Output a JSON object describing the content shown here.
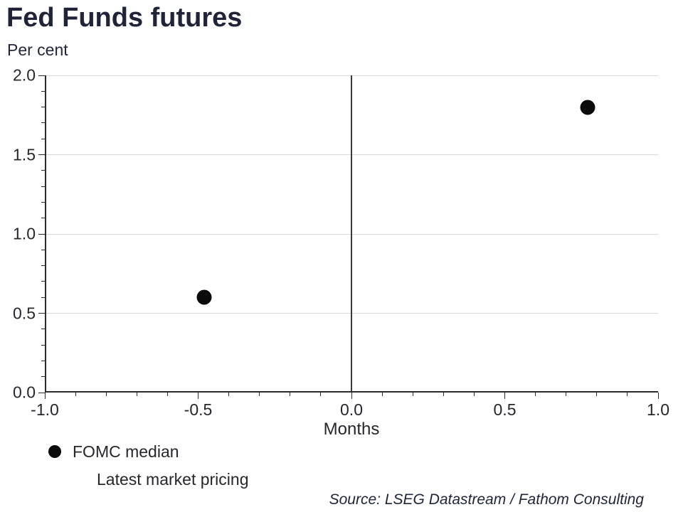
{
  "title": "Fed Funds futures",
  "y_axis_caption": "Per cent",
  "source": "Source: LSEG Datastream / Fathom Consulting",
  "legend": {
    "position": "bottom-left",
    "items": [
      {
        "label": "FOMC median",
        "marker": "filled-circle"
      },
      {
        "label": "Latest market pricing",
        "marker": "none"
      }
    ]
  },
  "chart_data": {
    "type": "scatter",
    "title": "Fed Funds futures",
    "ylabel": "Per cent",
    "xlabel": "Months",
    "xlim": [
      -1.0,
      1.0
    ],
    "ylim": [
      0.0,
      2.0
    ],
    "x_tick_values": [
      -1.0,
      -0.5,
      0.0,
      0.5,
      1.0
    ],
    "x_tick_labels": [
      "-1.0",
      "-0.5",
      "0.0",
      "0.5",
      "1.0"
    ],
    "y_tick_values": [
      0.0,
      0.5,
      1.0,
      1.5,
      2.0
    ],
    "y_tick_labels": [
      "0.0",
      "0.5",
      "1.0",
      "1.5",
      "2.0"
    ],
    "minor_tick_step": 0.1,
    "grid": "horizontal-major-only",
    "zero_line_at_x": 0.0,
    "series": [
      {
        "name": "FOMC median",
        "marker": "filled-circle",
        "color": "#0b0b0b",
        "points": [
          {
            "x": -0.48,
            "y": 0.6
          },
          {
            "x": 0.77,
            "y": 1.8
          }
        ]
      },
      {
        "name": "Latest market pricing",
        "marker": "none",
        "color": "#0b0b0b",
        "points": []
      }
    ]
  },
  "colors": {
    "title_text": "#1f2438",
    "axis_text": "#26262b",
    "grid_line": "#d9d9d9",
    "axis_line": "#2b2b2b",
    "zero_line": "#3a3a3a",
    "marker": "#0b0b0b",
    "background": "#ffffff"
  }
}
